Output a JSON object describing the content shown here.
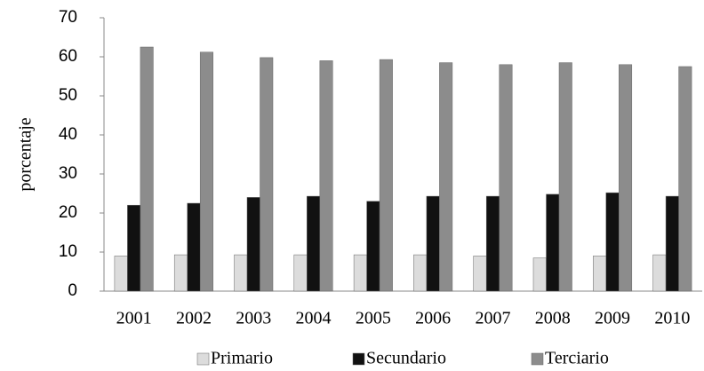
{
  "chart_data": {
    "type": "bar",
    "y_label": "porcentaje",
    "categories": [
      "2001",
      "2002",
      "2003",
      "2004",
      "2005",
      "2006",
      "2007",
      "2008",
      "2009",
      "2010"
    ],
    "series": [
      {
        "name": "Primario",
        "color": "#dcdcdc",
        "values": [
          9,
          9.3,
          9.3,
          9.3,
          9.3,
          9.3,
          9,
          8.5,
          9,
          9.3
        ]
      },
      {
        "name": "Secundario",
        "color": "#111111",
        "values": [
          22,
          22.5,
          24,
          24.3,
          23,
          24.3,
          24.3,
          24.8,
          25.2,
          24.3
        ]
      },
      {
        "name": "Terciario",
        "color": "#8c8c8c",
        "values": [
          62.5,
          61.2,
          59.8,
          59,
          59.3,
          58.5,
          58,
          58.5,
          58,
          57.5
        ]
      }
    ],
    "ylim": [
      0,
      70
    ],
    "yticks": [
      0,
      10,
      20,
      30,
      40,
      50,
      60,
      70
    ],
    "grid": false,
    "legend": "bottom"
  }
}
